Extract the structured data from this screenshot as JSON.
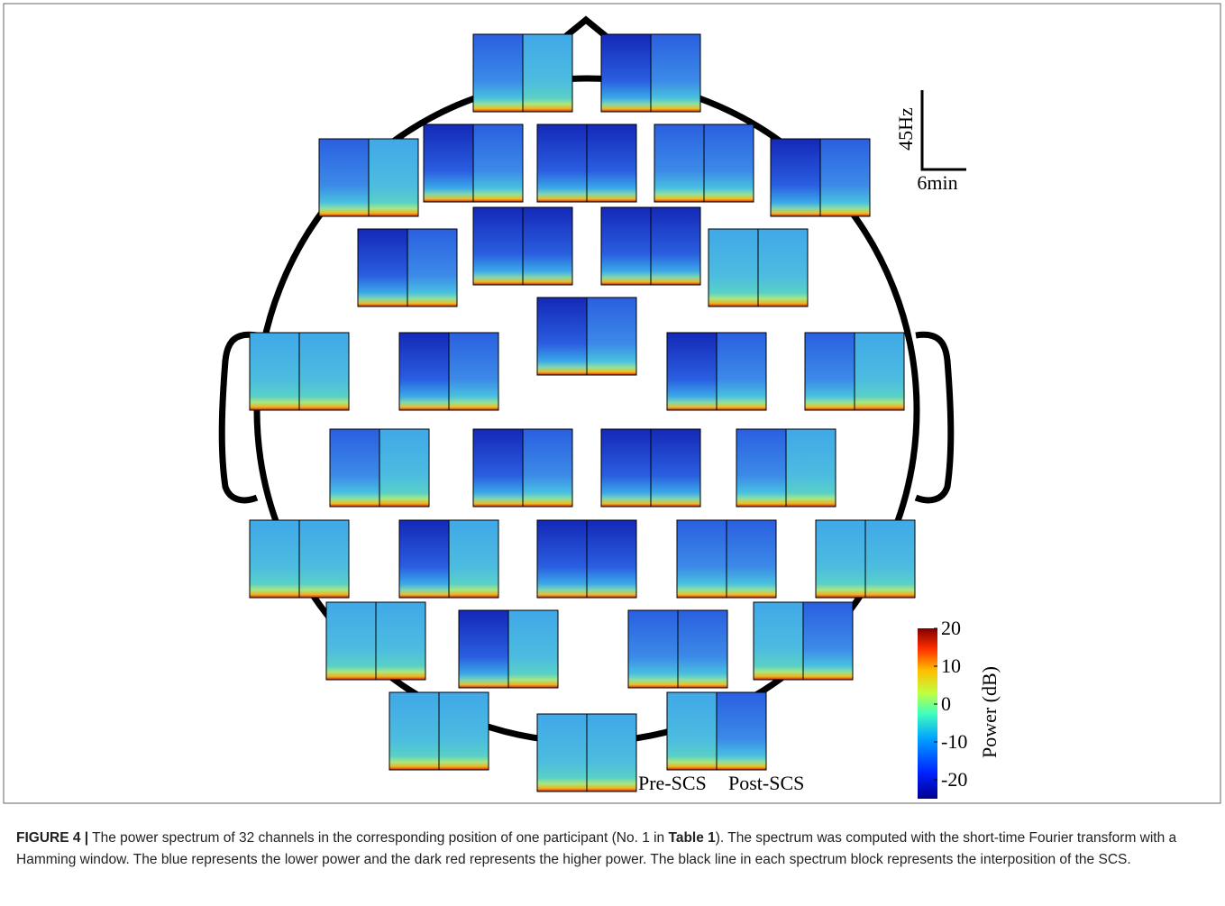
{
  "scale_bar": {
    "frequency": "45Hz",
    "time": "6min"
  },
  "block_labels": {
    "pre": "Pre-SCS",
    "post": "Post-SCS"
  },
  "colorbar": {
    "label": "Power (dB)",
    "lim": [
      -25,
      20
    ],
    "ticks": [
      -20,
      -10,
      0,
      10,
      20
    ]
  },
  "caption": {
    "label": "FIGURE 4 |",
    "text_1": "The power spectrum of 32 channels in the corresponding position of one participant (No. 1 in",
    "table_ref": "Table 1",
    "text_2": "). The spectrum was computed with the short-time Fourier transform with a Hamming window. The blue represents the lower power and the dark red represents the higher power. The black line in each spectrum block represents the interposition of the SCS."
  }
}
